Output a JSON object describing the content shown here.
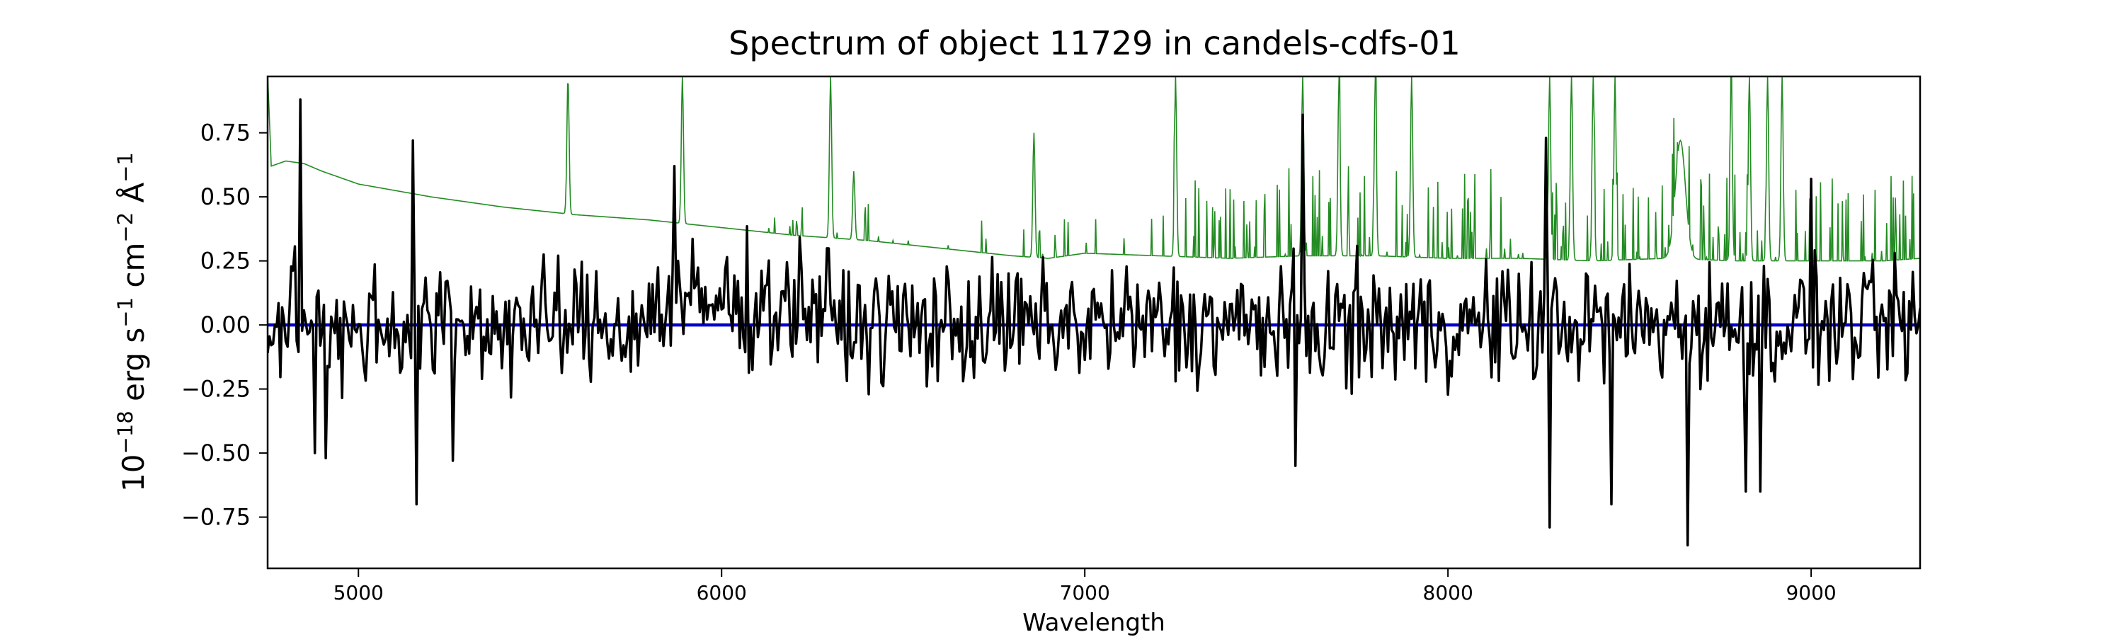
{
  "chart_data": {
    "type": "line",
    "title": "Spectrum of object 11729 in candels-cdfs-01",
    "xlabel": "Wavelength",
    "ylabel": {
      "base": "10",
      "exp1": "−18",
      "unit1": " erg s",
      "exp2": "−1",
      "unit2": " cm",
      "exp3": "−2",
      "unit3": " Å",
      "exp4": "−1"
    },
    "xlim": [
      4750,
      9300
    ],
    "ylim": [
      -0.95,
      0.97
    ],
    "xticks": [
      5000,
      6000,
      7000,
      8000,
      9000
    ],
    "xtick_labels": [
      "5000",
      "6000",
      "7000",
      "8000",
      "9000"
    ],
    "yticks": [
      -0.75,
      -0.5,
      -0.25,
      0.0,
      0.25,
      0.5,
      0.75
    ],
    "ytick_labels": [
      "−0.75",
      "−0.50",
      "−0.25",
      "0.00",
      "0.25",
      "0.50",
      "0.75"
    ],
    "grid": false,
    "series": [
      {
        "role": "sky-noise",
        "color": "#228B22",
        "continuum": [
          [
            4750,
            0.98
          ],
          [
            4760,
            0.62
          ],
          [
            4800,
            0.64
          ],
          [
            4850,
            0.63
          ],
          [
            4900,
            0.6
          ],
          [
            5000,
            0.55
          ],
          [
            5200,
            0.5
          ],
          [
            5400,
            0.46
          ],
          [
            5600,
            0.43
          ],
          [
            5800,
            0.41
          ],
          [
            6000,
            0.38
          ],
          [
            6200,
            0.35
          ],
          [
            6400,
            0.33
          ],
          [
            6600,
            0.3
          ],
          [
            6800,
            0.27
          ],
          [
            6900,
            0.26
          ],
          [
            7000,
            0.28
          ],
          [
            7200,
            0.27
          ],
          [
            7400,
            0.26
          ],
          [
            7600,
            0.27
          ],
          [
            7800,
            0.27
          ],
          [
            8000,
            0.26
          ],
          [
            8200,
            0.26
          ],
          [
            8400,
            0.25
          ],
          [
            8600,
            0.26
          ],
          [
            8800,
            0.25
          ],
          [
            9000,
            0.25
          ],
          [
            9200,
            0.25
          ],
          [
            9300,
            0.26
          ]
        ],
        "peaks": [
          [
            5577,
            0.97
          ],
          [
            5892,
            0.97
          ],
          [
            6300,
            0.97
          ],
          [
            6364,
            0.6
          ],
          [
            6860,
            0.75
          ],
          [
            7250,
            0.97
          ],
          [
            7600,
            0.97
          ],
          [
            7700,
            0.97
          ],
          [
            7800,
            0.97
          ],
          [
            7900,
            0.97
          ],
          [
            8280,
            0.97
          ],
          [
            8340,
            0.97
          ],
          [
            8400,
            0.97
          ],
          [
            8460,
            0.97
          ],
          [
            8640,
            0.72
          ],
          [
            8780,
            0.97
          ],
          [
            8830,
            0.97
          ],
          [
            8880,
            0.97
          ],
          [
            8920,
            0.97
          ]
        ]
      },
      {
        "role": "flux",
        "color": "#000000",
        "start": 4750,
        "end": 9300,
        "step": 5,
        "amplitude": 0.26,
        "extremes": [
          [
            4840,
            0.88
          ],
          [
            4880,
            -0.5
          ],
          [
            4910,
            -0.52
          ],
          [
            5150,
            0.72
          ],
          [
            5160,
            -0.7
          ],
          [
            5260,
            -0.53
          ],
          [
            5870,
            0.62
          ],
          [
            7580,
            -0.55
          ],
          [
            7600,
            0.82
          ],
          [
            8270,
            0.73
          ],
          [
            8280,
            -0.79
          ],
          [
            8450,
            -0.7
          ],
          [
            8660,
            -0.86
          ],
          [
            8820,
            -0.65
          ],
          [
            8860,
            -0.65
          ],
          [
            9000,
            0.57
          ]
        ]
      },
      {
        "role": "zero-line",
        "color": "#0000CD",
        "value": 0.0
      }
    ]
  }
}
